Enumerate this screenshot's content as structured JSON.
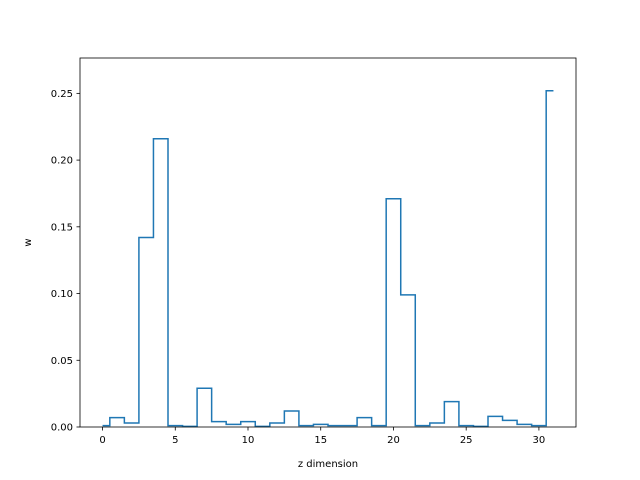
{
  "chart_data": {
    "type": "step",
    "xlabel": "z dimension",
    "ylabel": "w",
    "xlim": [
      -1.55,
      32.55
    ],
    "ylim": [
      0.0,
      0.2765
    ],
    "xticks": [
      0,
      5,
      10,
      15,
      20,
      25,
      30
    ],
    "yticks": [
      0.0,
      0.05,
      0.1,
      0.15,
      0.2,
      0.25
    ],
    "xtick_labels": [
      "0",
      "5",
      "10",
      "15",
      "20",
      "25",
      "30"
    ],
    "ytick_labels": [
      "0.00",
      "0.05",
      "0.10",
      "0.15",
      "0.20",
      "0.25"
    ],
    "step_where": "mid",
    "x": [
      0,
      1,
      2,
      3,
      4,
      5,
      6,
      7,
      8,
      9,
      10,
      11,
      12,
      13,
      14,
      15,
      16,
      17,
      18,
      19,
      20,
      21,
      22,
      23,
      24,
      25,
      26,
      27,
      28,
      29,
      30,
      31
    ],
    "values": [
      0.001,
      0.007,
      0.003,
      0.142,
      0.216,
      0.001,
      0.0005,
      0.029,
      0.004,
      0.002,
      0.004,
      0.0005,
      0.003,
      0.012,
      0.001,
      0.002,
      0.001,
      0.001,
      0.007,
      0.001,
      0.171,
      0.099,
      0.001,
      0.003,
      0.019,
      0.001,
      0.0005,
      0.008,
      0.005,
      0.002,
      0.001,
      0.252
    ],
    "line_color": "#1f77b4",
    "grid": false,
    "legend": false
  }
}
